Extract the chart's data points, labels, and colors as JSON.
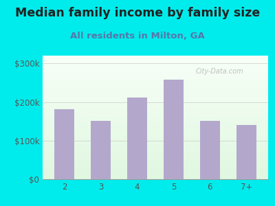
{
  "title": "Median family income by family size",
  "subtitle": "All residents in Milton, GA",
  "categories": [
    "2",
    "3",
    "4",
    "5",
    "6",
    "7+"
  ],
  "values": [
    182000,
    152000,
    212000,
    258000,
    152000,
    140000
  ],
  "bar_color": "#b3a8cc",
  "background_outer": "#00ecec",
  "title_color": "#222222",
  "subtitle_color": "#5577aa",
  "axis_color": "#555555",
  "ytick_labels": [
    "$0",
    "$100k",
    "$200k",
    "$300k"
  ],
  "ytick_values": [
    0,
    100000,
    200000,
    300000
  ],
  "ylim": [
    0,
    320000
  ],
  "title_fontsize": 12.5,
  "subtitle_fontsize": 9.5,
  "tick_fontsize": 8.5
}
